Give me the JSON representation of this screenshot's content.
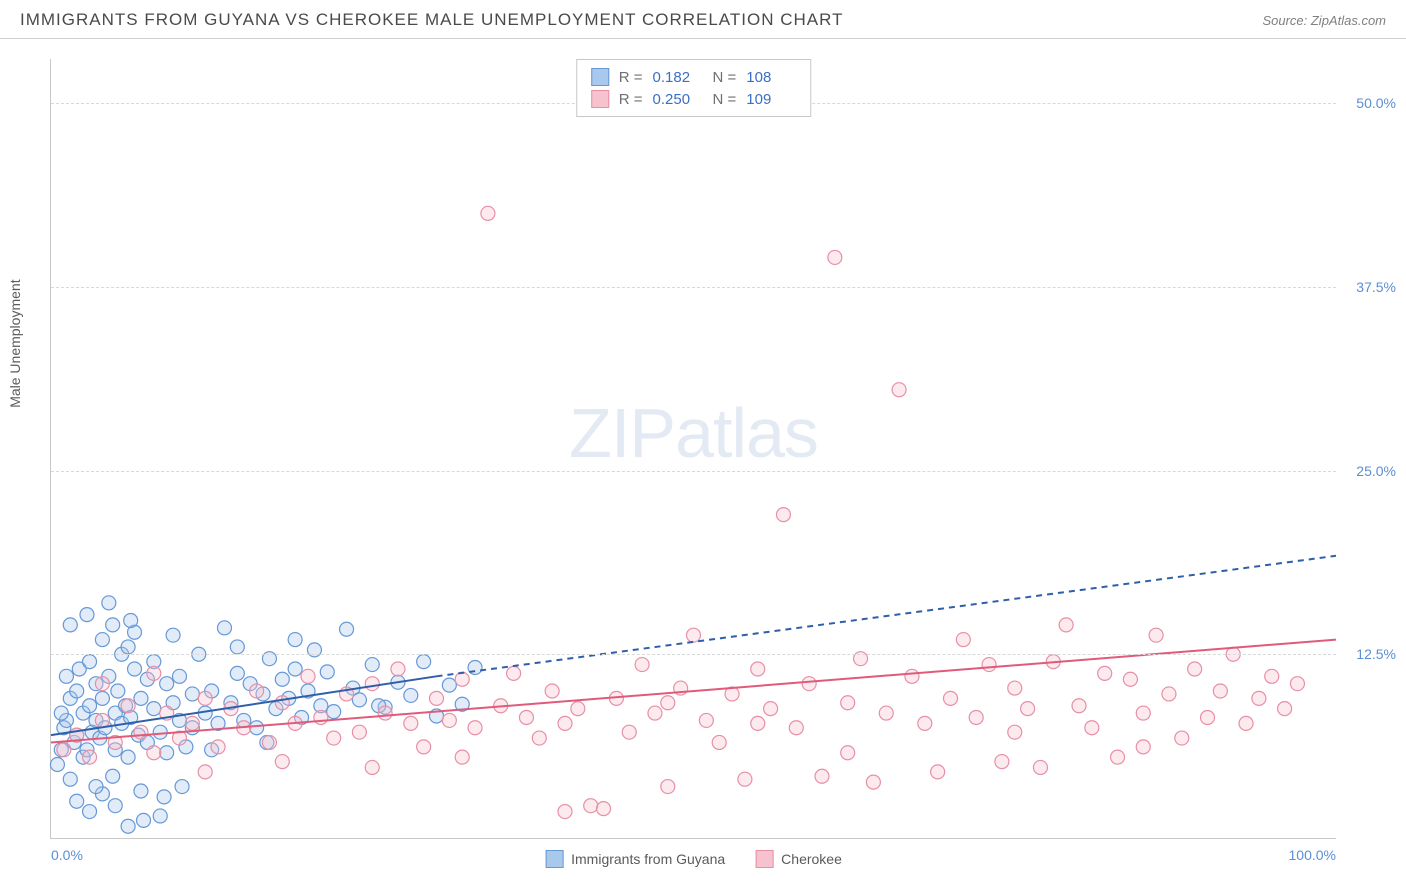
{
  "header": {
    "title": "IMMIGRANTS FROM GUYANA VS CHEROKEE MALE UNEMPLOYMENT CORRELATION CHART",
    "source": "Source: ZipAtlas.com"
  },
  "watermark": {
    "zip": "ZIP",
    "atlas": "atlas"
  },
  "chart": {
    "type": "scatter",
    "y_axis_label": "Male Unemployment",
    "xlim": [
      0,
      100
    ],
    "ylim": [
      0,
      53
    ],
    "x_ticks": [
      {
        "value": 0,
        "label": "0.0%"
      },
      {
        "value": 100,
        "label": "100.0%"
      }
    ],
    "y_ticks": [
      {
        "value": 12.5,
        "label": "12.5%"
      },
      {
        "value": 25.0,
        "label": "25.0%"
      },
      {
        "value": 37.5,
        "label": "37.5%"
      },
      {
        "value": 50.0,
        "label": "50.0%"
      }
    ],
    "grid_color": "#d8d8d8",
    "background_color": "#ffffff",
    "marker_radius": 7,
    "marker_fill_opacity": 0.35,
    "marker_stroke_width": 1.2,
    "series": [
      {
        "id": "guyana",
        "name": "Immigrants from Guyana",
        "color_fill": "#a8c8ec",
        "color_stroke": "#6698d8",
        "r_value": "0.182",
        "n_value": "108",
        "trend": {
          "solid": {
            "x1": 0,
            "y1": 7.0,
            "x2": 30,
            "y2": 11.0
          },
          "dashed": {
            "x1": 30,
            "y1": 11.0,
            "x2": 100,
            "y2": 19.2
          },
          "color": "#2f5fa8",
          "width": 2
        },
        "points": [
          [
            0.5,
            5
          ],
          [
            0.8,
            6
          ],
          [
            1,
            7.5
          ],
          [
            1.2,
            8
          ],
          [
            1.5,
            9.5
          ],
          [
            1.5,
            4
          ],
          [
            1.8,
            6.5
          ],
          [
            2,
            7
          ],
          [
            2,
            10
          ],
          [
            2.2,
            11.5
          ],
          [
            2.5,
            8.5
          ],
          [
            2.5,
            5.5
          ],
          [
            2.8,
            6
          ],
          [
            3,
            9
          ],
          [
            3,
            12
          ],
          [
            3.2,
            7.2
          ],
          [
            3.5,
            10.5
          ],
          [
            3.5,
            8
          ],
          [
            3.8,
            6.8
          ],
          [
            4,
            13.5
          ],
          [
            4,
            9.5
          ],
          [
            4.2,
            7.5
          ],
          [
            4.5,
            11
          ],
          [
            4.5,
            16
          ],
          [
            4.8,
            14.5
          ],
          [
            5,
            8.5
          ],
          [
            5,
            6
          ],
          [
            5.2,
            10
          ],
          [
            5.5,
            12.5
          ],
          [
            5.5,
            7.8
          ],
          [
            5.8,
            9
          ],
          [
            6,
            13
          ],
          [
            6,
            5.5
          ],
          [
            6.2,
            8.2
          ],
          [
            6.5,
            11.5
          ],
          [
            6.5,
            14
          ],
          [
            6.8,
            7
          ],
          [
            7,
            9.5
          ],
          [
            7,
            3.2
          ],
          [
            7.5,
            10.8
          ],
          [
            7.5,
            6.5
          ],
          [
            8,
            12
          ],
          [
            8,
            8.8
          ],
          [
            8.5,
            1.5
          ],
          [
            8.5,
            7.2
          ],
          [
            9,
            10.5
          ],
          [
            9,
            5.8
          ],
          [
            9.5,
            9.2
          ],
          [
            9.5,
            13.8
          ],
          [
            10,
            8
          ],
          [
            10,
            11
          ],
          [
            10.5,
            6.2
          ],
          [
            11,
            9.8
          ],
          [
            11,
            7.5
          ],
          [
            11.5,
            12.5
          ],
          [
            12,
            8.5
          ],
          [
            12.5,
            10
          ],
          [
            13,
            7.8
          ],
          [
            13.5,
            14.3
          ],
          [
            14,
            9.2
          ],
          [
            14.5,
            11.2
          ],
          [
            15,
            8
          ],
          [
            15.5,
            10.5
          ],
          [
            16,
            7.5
          ],
          [
            16.5,
            9.8
          ],
          [
            17,
            12.2
          ],
          [
            17.5,
            8.8
          ],
          [
            18,
            10.8
          ],
          [
            18.5,
            9.5
          ],
          [
            19,
            11.5
          ],
          [
            19.5,
            8.2
          ],
          [
            20,
            10
          ],
          [
            20.5,
            12.8
          ],
          [
            21,
            9
          ],
          [
            21.5,
            11.3
          ],
          [
            22,
            8.6
          ],
          [
            23,
            14.2
          ],
          [
            23.5,
            10.2
          ],
          [
            24,
            9.4
          ],
          [
            25,
            11.8
          ],
          [
            26,
            8.9
          ],
          [
            27,
            10.6
          ],
          [
            28,
            9.7
          ],
          [
            29,
            12
          ],
          [
            30,
            8.3
          ],
          [
            31,
            10.4
          ],
          [
            32,
            9.1
          ],
          [
            33,
            11.6
          ],
          [
            2,
            2.5
          ],
          [
            3,
            1.8
          ],
          [
            4,
            3
          ],
          [
            5,
            2.2
          ],
          [
            6,
            0.8
          ],
          [
            1.5,
            14.5
          ],
          [
            2.8,
            15.2
          ],
          [
            3.5,
            3.5
          ],
          [
            4.8,
            4.2
          ],
          [
            6.2,
            14.8
          ],
          [
            0.8,
            8.5
          ],
          [
            1.2,
            11
          ],
          [
            7.2,
            1.2
          ],
          [
            8.8,
            2.8
          ],
          [
            10.2,
            3.5
          ],
          [
            12.5,
            6
          ],
          [
            14.5,
            13
          ],
          [
            16.8,
            6.5
          ],
          [
            19,
            13.5
          ],
          [
            25.5,
            9
          ]
        ]
      },
      {
        "id": "cherokee",
        "name": "Cherokee",
        "color_fill": "#f5c2ce",
        "color_stroke": "#e88fa5",
        "r_value": "0.250",
        "n_value": "109",
        "trend": {
          "solid": {
            "x1": 0,
            "y1": 6.5,
            "x2": 100,
            "y2": 13.5
          },
          "dashed": null,
          "color": "#e05a7a",
          "width": 2
        },
        "points": [
          [
            1,
            6
          ],
          [
            2,
            7
          ],
          [
            3,
            5.5
          ],
          [
            4,
            8
          ],
          [
            5,
            6.5
          ],
          [
            6,
            9
          ],
          [
            7,
            7.2
          ],
          [
            8,
            5.8
          ],
          [
            9,
            8.5
          ],
          [
            10,
            6.8
          ],
          [
            11,
            7.8
          ],
          [
            12,
            9.5
          ],
          [
            13,
            6.2
          ],
          [
            14,
            8.8
          ],
          [
            15,
            7.5
          ],
          [
            16,
            10
          ],
          [
            17,
            6.5
          ],
          [
            18,
            9.2
          ],
          [
            19,
            7.8
          ],
          [
            20,
            11
          ],
          [
            21,
            8.2
          ],
          [
            22,
            6.8
          ],
          [
            23,
            9.8
          ],
          [
            24,
            7.2
          ],
          [
            25,
            10.5
          ],
          [
            26,
            8.5
          ],
          [
            27,
            11.5
          ],
          [
            28,
            7.8
          ],
          [
            29,
            6.2
          ],
          [
            30,
            9.5
          ],
          [
            31,
            8
          ],
          [
            32,
            10.8
          ],
          [
            33,
            7.5
          ],
          [
            34,
            42.5
          ],
          [
            35,
            9
          ],
          [
            36,
            11.2
          ],
          [
            37,
            8.2
          ],
          [
            38,
            6.8
          ],
          [
            39,
            10
          ],
          [
            40,
            1.8
          ],
          [
            41,
            8.8
          ],
          [
            42,
            2.2
          ],
          [
            43,
            2
          ],
          [
            44,
            9.5
          ],
          [
            45,
            7.2
          ],
          [
            46,
            11.8
          ],
          [
            47,
            8.5
          ],
          [
            48,
            3.5
          ],
          [
            49,
            10.2
          ],
          [
            50,
            13.8
          ],
          [
            51,
            8
          ],
          [
            52,
            6.5
          ],
          [
            53,
            9.8
          ],
          [
            54,
            4
          ],
          [
            55,
            11.5
          ],
          [
            56,
            8.8
          ],
          [
            57,
            22
          ],
          [
            58,
            7.5
          ],
          [
            59,
            10.5
          ],
          [
            60,
            4.2
          ],
          [
            61,
            39.5
          ],
          [
            62,
            9.2
          ],
          [
            63,
            12.2
          ],
          [
            64,
            3.8
          ],
          [
            65,
            8.5
          ],
          [
            66,
            30.5
          ],
          [
            67,
            11
          ],
          [
            68,
            7.8
          ],
          [
            69,
            4.5
          ],
          [
            70,
            9.5
          ],
          [
            71,
            13.5
          ],
          [
            72,
            8.2
          ],
          [
            73,
            11.8
          ],
          [
            74,
            5.2
          ],
          [
            75,
            10.2
          ],
          [
            76,
            8.8
          ],
          [
            77,
            4.8
          ],
          [
            78,
            12
          ],
          [
            79,
            14.5
          ],
          [
            80,
            9
          ],
          [
            81,
            7.5
          ],
          [
            82,
            11.2
          ],
          [
            83,
            5.5
          ],
          [
            84,
            10.8
          ],
          [
            85,
            8.5
          ],
          [
            86,
            13.8
          ],
          [
            87,
            9.8
          ],
          [
            88,
            6.8
          ],
          [
            89,
            11.5
          ],
          [
            90,
            8.2
          ],
          [
            91,
            10
          ],
          [
            92,
            12.5
          ],
          [
            93,
            7.8
          ],
          [
            94,
            9.5
          ],
          [
            95,
            11
          ],
          [
            96,
            8.8
          ],
          [
            97,
            10.5
          ],
          [
            4,
            10.5
          ],
          [
            8,
            11.2
          ],
          [
            12,
            4.5
          ],
          [
            18,
            5.2
          ],
          [
            25,
            4.8
          ],
          [
            32,
            5.5
          ],
          [
            40,
            7.8
          ],
          [
            48,
            9.2
          ],
          [
            55,
            7.8
          ],
          [
            62,
            5.8
          ],
          [
            75,
            7.2
          ],
          [
            85,
            6.2
          ]
        ]
      }
    ]
  },
  "legend_bottom": {
    "items": [
      {
        "swatch_fill": "#a8c8ec",
        "swatch_stroke": "#6698d8",
        "label_key": "chart.series.0.name"
      },
      {
        "swatch_fill": "#f5c2ce",
        "swatch_stroke": "#e88fa5",
        "label_key": "chart.series.1.name"
      }
    ]
  },
  "legend_top_labels": {
    "r": "R =",
    "n": "N ="
  }
}
